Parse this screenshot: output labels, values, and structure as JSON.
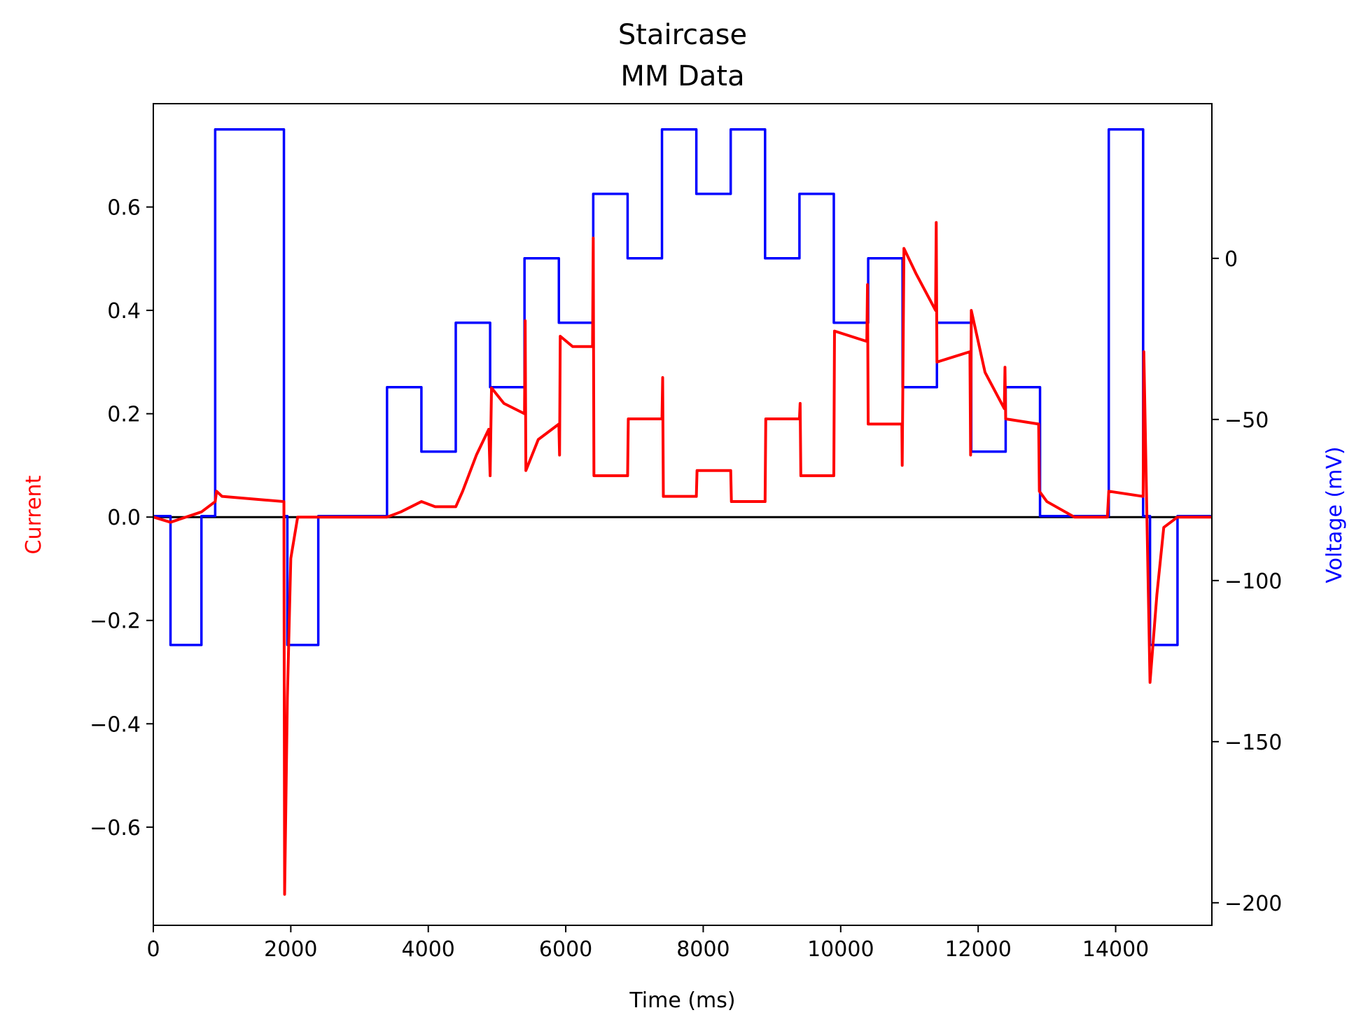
{
  "chart_data": {
    "type": "line",
    "title": "Staircase",
    "subtitle": "MM Data",
    "xlabel": "Time (ms)",
    "ylabel_left": "Current",
    "ylabel_right": "Voltage (mV)",
    "xlim": [
      0,
      15400
    ],
    "ylim_left": [
      -0.79,
      0.8
    ],
    "ylim_right": [
      -207,
      48
    ],
    "x_ticks": [
      0,
      2000,
      4000,
      6000,
      8000,
      10000,
      12000,
      14000
    ],
    "x_tick_labels": [
      "0",
      "2000",
      "4000",
      "6000",
      "8000",
      "10000",
      "12000",
      "14000"
    ],
    "y_left_ticks": [
      -0.6,
      -0.4,
      -0.2,
      0.0,
      0.2,
      0.4,
      0.6
    ],
    "y_left_tick_labels": [
      "−0.6",
      "−0.4",
      "−0.2",
      "0.0",
      "0.2",
      "0.4",
      "0.6"
    ],
    "y_right_ticks": [
      -200,
      -150,
      -100,
      -50,
      0
    ],
    "y_right_tick_labels": [
      "−200",
      "−150",
      "−100",
      "−50",
      "0"
    ],
    "zero_line": 0.0,
    "grid": false,
    "colors": {
      "current": "#ff0000",
      "voltage": "#0000ff",
      "zero_line": "#000000",
      "axes": "#000000"
    },
    "series": [
      {
        "axis": "right",
        "color": "#0000ff",
        "step": true,
        "segments": [
          [
            0,
            -80
          ],
          [
            250,
            -120
          ],
          [
            700,
            -80
          ],
          [
            900,
            40
          ],
          [
            1900,
            -80
          ],
          [
            1950,
            -120
          ],
          [
            2400,
            -80
          ],
          [
            3400,
            -40
          ],
          [
            3900,
            -60
          ],
          [
            4400,
            -20
          ],
          [
            4900,
            -40
          ],
          [
            5400,
            0
          ],
          [
            5900,
            -20
          ],
          [
            6400,
            20
          ],
          [
            6900,
            0
          ],
          [
            7400,
            40
          ],
          [
            7900,
            20
          ],
          [
            8400,
            40
          ],
          [
            8900,
            0
          ],
          [
            9400,
            20
          ],
          [
            9900,
            -20
          ],
          [
            10400,
            0
          ],
          [
            10900,
            0
          ],
          [
            10900,
            -40
          ],
          [
            11400,
            -20
          ],
          [
            11900,
            -60
          ],
          [
            12400,
            -40
          ],
          [
            12900,
            -80
          ],
          [
            13900,
            40
          ],
          [
            14400,
            -80
          ],
          [
            14500,
            -120
          ],
          [
            14900,
            -80
          ],
          [
            15400,
            -80
          ]
        ]
      },
      {
        "axis": "left",
        "color": "#ff0000",
        "points": [
          [
            0,
            0.0
          ],
          [
            250,
            -0.01
          ],
          [
            700,
            0.01
          ],
          [
            900,
            0.03
          ],
          [
            920,
            0.05
          ],
          [
            1000,
            0.04
          ],
          [
            1900,
            0.03
          ],
          [
            1910,
            -0.73
          ],
          [
            1950,
            -0.35
          ],
          [
            2000,
            -0.08
          ],
          [
            2100,
            0.0
          ],
          [
            2400,
            0.0
          ],
          [
            3400,
            0.0
          ],
          [
            3600,
            0.01
          ],
          [
            3900,
            0.03
          ],
          [
            4100,
            0.02
          ],
          [
            4400,
            0.02
          ],
          [
            4500,
            0.05
          ],
          [
            4700,
            0.12
          ],
          [
            4880,
            0.17
          ],
          [
            4900,
            0.08
          ],
          [
            4920,
            0.25
          ],
          [
            5100,
            0.22
          ],
          [
            5400,
            0.2
          ],
          [
            5410,
            0.38
          ],
          [
            5420,
            0.09
          ],
          [
            5600,
            0.15
          ],
          [
            5900,
            0.18
          ],
          [
            5910,
            0.12
          ],
          [
            5920,
            0.35
          ],
          [
            6100,
            0.33
          ],
          [
            6390,
            0.33
          ],
          [
            6400,
            0.54
          ],
          [
            6410,
            0.08
          ],
          [
            6900,
            0.08
          ],
          [
            6910,
            0.19
          ],
          [
            7400,
            0.19
          ],
          [
            7410,
            0.27
          ],
          [
            7420,
            0.04
          ],
          [
            7900,
            0.04
          ],
          [
            7910,
            0.09
          ],
          [
            8400,
            0.09
          ],
          [
            8410,
            0.03
          ],
          [
            8900,
            0.03
          ],
          [
            8910,
            0.19
          ],
          [
            9400,
            0.19
          ],
          [
            9410,
            0.22
          ],
          [
            9420,
            0.08
          ],
          [
            9900,
            0.08
          ],
          [
            9910,
            0.36
          ],
          [
            10380,
            0.34
          ],
          [
            10390,
            0.45
          ],
          [
            10400,
            0.18
          ],
          [
            10890,
            0.18
          ],
          [
            10895,
            0.1
          ],
          [
            10920,
            0.52
          ],
          [
            11100,
            0.47
          ],
          [
            11380,
            0.4
          ],
          [
            11390,
            0.57
          ],
          [
            11400,
            0.3
          ],
          [
            11880,
            0.32
          ],
          [
            11890,
            0.12
          ],
          [
            11900,
            0.4
          ],
          [
            12100,
            0.28
          ],
          [
            12380,
            0.21
          ],
          [
            12390,
            0.29
          ],
          [
            12400,
            0.19
          ],
          [
            12880,
            0.18
          ],
          [
            12890,
            0.05
          ],
          [
            13000,
            0.03
          ],
          [
            13400,
            0.0
          ],
          [
            13880,
            0.0
          ],
          [
            13900,
            0.05
          ],
          [
            14400,
            0.04
          ],
          [
            14410,
            0.32
          ],
          [
            14500,
            -0.32
          ],
          [
            14600,
            -0.15
          ],
          [
            14700,
            -0.02
          ],
          [
            14900,
            0.0
          ],
          [
            15400,
            0.0
          ]
        ]
      }
    ]
  }
}
